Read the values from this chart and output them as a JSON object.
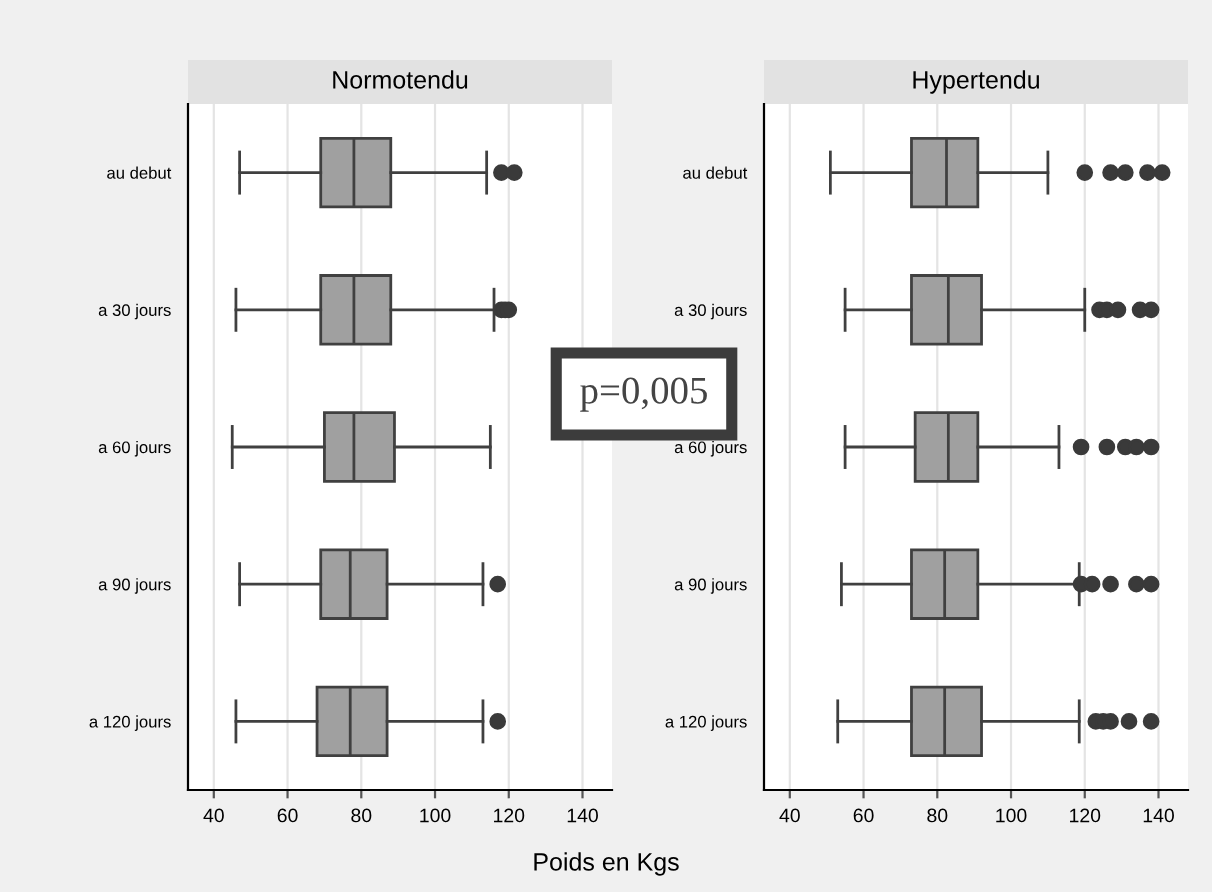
{
  "chart_data": [
    {
      "type": "box",
      "title": "Normotendu",
      "xlabel": "Poids en Kgs",
      "orientation": "horizontal",
      "grid": "x",
      "annotations": [
        "p=0,005"
      ],
      "categories": [
        "au debut",
        "a 30 jours",
        "a 60 jours",
        "a 90 jours",
        "a 120 jours"
      ],
      "boxes": [
        {
          "low": 47,
          "q1": 69,
          "median": 78,
          "q3": 88,
          "high": 114,
          "outliers": [
            118,
            121.5
          ]
        },
        {
          "low": 46,
          "q1": 69,
          "median": 78,
          "q3": 88,
          "high": 116,
          "outliers": [
            118,
            119,
            120
          ]
        },
        {
          "low": 45,
          "q1": 70,
          "median": 78,
          "q3": 89,
          "high": 115
        },
        {
          "low": 47,
          "q1": 69,
          "median": 77,
          "q3": 87,
          "high": 113,
          "outliers": [
            117
          ]
        },
        {
          "low": 46,
          "q1": 68,
          "median": 77,
          "q3": 87,
          "high": 113,
          "outliers": [
            117
          ]
        }
      ],
      "xlim": [
        33,
        148
      ],
      "xticks": [
        40,
        60,
        80,
        100,
        120,
        140
      ]
    },
    {
      "type": "box",
      "title": "Hypertendu",
      "orientation": "horizontal",
      "grid": "x",
      "categories": [
        "au debut",
        "a 30 jours",
        "a 60 jours",
        "a 90 jours",
        "a 120 jours"
      ],
      "boxes": [
        {
          "low": 51,
          "q1": 73,
          "median": 82.5,
          "q3": 91,
          "high": 110,
          "outliers": [
            120,
            127,
            131,
            137,
            141
          ]
        },
        {
          "low": 55,
          "q1": 73,
          "median": 83,
          "q3": 92,
          "high": 120,
          "outliers": [
            124,
            126,
            129,
            135,
            138
          ]
        },
        {
          "low": 55,
          "q1": 74,
          "median": 83,
          "q3": 91,
          "high": 113,
          "outliers": [
            119,
            126,
            131,
            134,
            138
          ]
        },
        {
          "low": 54,
          "q1": 73,
          "median": 82,
          "q3": 91,
          "high": 118.5,
          "outliers": [
            119,
            122,
            127,
            134,
            138
          ]
        },
        {
          "low": 53,
          "q1": 73,
          "median": 82,
          "q3": 92,
          "high": 118.5,
          "outliers": [
            123,
            125,
            127,
            132,
            138
          ]
        }
      ],
      "xlim": [
        33,
        148
      ],
      "xticks": [
        40,
        60,
        80,
        100,
        120,
        140
      ]
    }
  ]
}
